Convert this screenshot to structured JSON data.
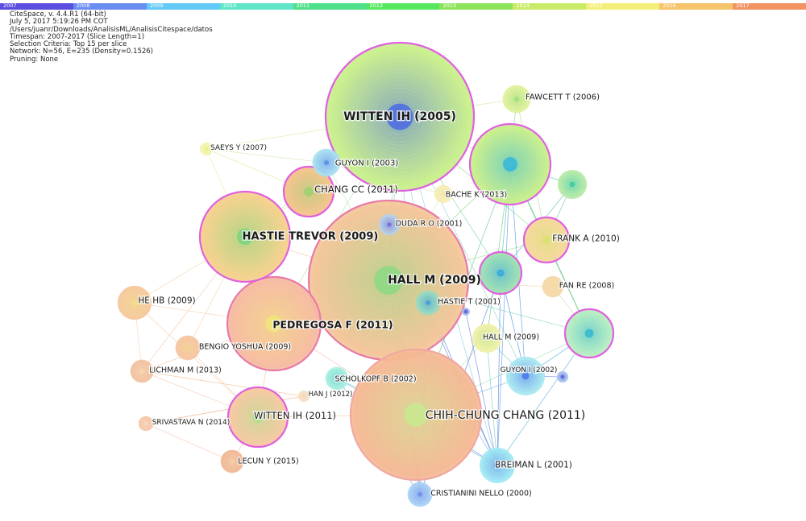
{
  "timeline": [
    {
      "year": "2007",
      "color": "#5b4de0"
    },
    {
      "year": "2008",
      "color": "#6a8df2"
    },
    {
      "year": "2009",
      "color": "#63c9f6"
    },
    {
      "year": "2010",
      "color": "#5fe5c8"
    },
    {
      "year": "2011",
      "color": "#4fe08a"
    },
    {
      "year": "2012",
      "color": "#55e85f"
    },
    {
      "year": "2013",
      "color": "#8de45a"
    },
    {
      "year": "2014",
      "color": "#c8ec68"
    },
    {
      "year": "2015",
      "color": "#f4ef7a"
    },
    {
      "year": "2016",
      "color": "#f6c46a"
    },
    {
      "year": "2017",
      "color": "#f29362"
    }
  ],
  "header": [
    "CiteSpace, v. 4.4.R1 (64-bit)",
    "July 5, 2017 5:19:26 PM COT",
    "/Users/juanr/Downloads/AnalisisML/AnalisisCitespace/datos",
    "Timespan: 2007-2017 (Slice Length=1)",
    "Selection Criteria: Top 15 per slice",
    "Network: N=56, E=235 (Density=0.1526)",
    "Pruning: None"
  ],
  "nodes": [
    {
      "id": "witten2005",
      "label": "WITTEN IH (2005)",
      "inner": "#4f6fe0",
      "outer": "#c8ee8a",
      "ring": "#e060e0"
    },
    {
      "id": "fawcett",
      "label": "FAWCETT T (2006)",
      "inner": "#9adf7a",
      "outer": "#dff09a",
      "ring": ""
    },
    {
      "id": "saeys",
      "label": "SAEYS Y (2007)",
      "inner": "#e9ef8a",
      "outer": "#f2f4b4",
      "ring": ""
    },
    {
      "id": "guyon2003",
      "label": "GUYON I (2003)",
      "inner": "#5a8de6",
      "outer": "#a8e0f0",
      "ring": ""
    },
    {
      "id": "chang2011",
      "label": "CHANG CC (2011)",
      "inner": "#9ccf73",
      "outer": "#f4c28a",
      "ring": "#e060e0"
    },
    {
      "id": "bache",
      "label": "BACHE K (2013)",
      "inner": "#f0e8a0",
      "outer": "#f6edb8",
      "ring": ""
    },
    {
      "id": "bigGreen",
      "label": "",
      "inner": "#38b8d8",
      "outer": "#c8ee8a",
      "ring": "#e060e0"
    },
    {
      "id": "rightSmall1",
      "label": "",
      "inner": "#38c8a8",
      "outer": "#b8eaa8",
      "ring": ""
    },
    {
      "id": "duda",
      "label": "DUDA R O (2001)",
      "inner": "#6a6ad8",
      "outer": "#b8d0e8",
      "ring": ""
    },
    {
      "id": "hastieTrevor",
      "label": "HASTIE TREVOR (2009)",
      "inner": "#7cd67c",
      "outer": "#f4d08a",
      "ring": "#e060e0"
    },
    {
      "id": "frank",
      "label": "FRANK A (2010)",
      "inner": "#d8e070",
      "outer": "#f4d89a",
      "ring": "#e060e0"
    },
    {
      "id": "hall2009",
      "label": "HALL M (2009)",
      "inner": "#8ed883",
      "outer": "#f3c497",
      "ring": "#e87aa8"
    },
    {
      "id": "midCyan",
      "label": "",
      "inner": "#3aa8e0",
      "outer": "#9ee0b0",
      "ring": "#e060e0"
    },
    {
      "id": "fanre",
      "label": "FAN RE (2008)",
      "inner": "#f2dca0",
      "outer": "#f4d8a8",
      "ring": ""
    },
    {
      "id": "hehb",
      "label": "HE HB (2009)",
      "inner": "#f0e08a",
      "outer": "#f6c89a",
      "ring": ""
    },
    {
      "id": "hastie2001",
      "label": "HASTIE T (2001)",
      "inner": "#3a9ad8",
      "outer": "#9adbc0",
      "ring": ""
    },
    {
      "id": "pedregosa",
      "label": "PEDREGOSA F (2011)",
      "inner": "#f2e47a",
      "outer": "#f5b9a0",
      "ring": "#e87aa8"
    },
    {
      "id": "rightRing",
      "label": "",
      "inner": "#38b8d0",
      "outer": "#b8eec0",
      "ring": "#e060e0"
    },
    {
      "id": "hallm2009b",
      "label": "HALL M (2009)",
      "inner": "#b6e47e",
      "outer": "#eef0a8",
      "ring": ""
    },
    {
      "id": "bengio",
      "label": "BENGIO YOSHUA (2009)",
      "inner": "#f0d68a",
      "outer": "#f5c4a0",
      "ring": ""
    },
    {
      "id": "lichman",
      "label": "LICHMAN M (2013)",
      "inner": "#f4d8b0",
      "outer": "#f3c0a0",
      "ring": ""
    },
    {
      "id": "guyon2002",
      "label": "GUYON I (2002)",
      "inner": "#4a7ae8",
      "outer": "#a8e8f0",
      "ring": ""
    },
    {
      "id": "scholkopf",
      "label": "SCHOLKOPF B (2002)",
      "inner": "#58c8c8",
      "outer": "#a8eee0",
      "ring": ""
    },
    {
      "id": "hanj",
      "label": "HAN J (2012)",
      "inner": "#f4d8b8",
      "outer": "#f6e0c8",
      "ring": ""
    },
    {
      "id": "wittenIH2011",
      "label": "WITTEN IH (2011)",
      "inner": "#a8e088",
      "outer": "#f5c8a0",
      "ring": "#e060e0"
    },
    {
      "id": "chihchung",
      "label": "CHIH-CHUNG CHANG (2011)",
      "inner": "#c8e890",
      "outer": "#f4b892",
      "ring": "#f0a8a0"
    },
    {
      "id": "srivastava",
      "label": "SRIVASTAVA N (2014)",
      "inner": "#f6d8b8",
      "outer": "#f4c6a8",
      "ring": ""
    },
    {
      "id": "lecun",
      "label": "LECUN Y (2015)",
      "inner": "#f4d0a8",
      "outer": "#f1b896",
      "ring": ""
    },
    {
      "id": "breiman",
      "label": "BREIMAN L (2001)",
      "inner": "#5a8ae8",
      "outer": "#a0e8f2",
      "ring": ""
    },
    {
      "id": "cristianini",
      "label": "CRISTIANINI NELLO (2000)",
      "inner": "#6a8ae8",
      "outer": "#a8d0f4",
      "ring": ""
    },
    {
      "id": "smallBlue1",
      "label": "",
      "inner": "#5a6ad8",
      "outer": "#b0c8f0",
      "ring": ""
    },
    {
      "id": "smallBlue2",
      "label": "",
      "inner": "#5a6ad8",
      "outer": "#b0c8f0",
      "ring": ""
    }
  ]
}
